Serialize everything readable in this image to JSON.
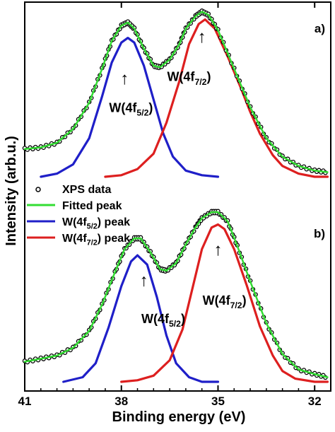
{
  "chart_data": {
    "type": "line",
    "xlabel": "Binding energy (eV)",
    "ylabel": "Intensity (arb.u.)",
    "xlim": [
      41.0,
      31.5
    ],
    "x_reversed": true,
    "x_ticks": [
      "41",
      "38",
      "35",
      "32"
    ],
    "grid": false,
    "legend": {
      "placement": "middle-left",
      "entries": [
        {
          "text": "XPS data",
          "marker": "open-circle",
          "color": "#000000"
        },
        {
          "text": "Fitted peak",
          "color": "#33dd33"
        },
        {
          "text_main": "W(4f",
          "text_sub": "5/2",
          "text_tail": ") peak",
          "color": "#1f1fc8"
        },
        {
          "text_main": "W(4f",
          "text_sub": "7/2",
          "text_tail": ") peak",
          "color": "#dd1f1f"
        }
      ]
    },
    "panels": [
      {
        "label": "a)",
        "ylim": [
          0,
          1.1
        ],
        "series": [
          {
            "name": "XPS data",
            "style": "scatter",
            "color": "#000000",
            "x": [
              41.0,
              40.5,
              40.0,
              39.5,
              39.0,
              38.6,
              38.3,
              38.0,
              37.8,
              37.6,
              37.3,
              37.0,
              36.8,
              36.5,
              36.2,
              36.0,
              35.7,
              35.5,
              35.3,
              35.0,
              34.5,
              34.0,
              33.5,
              33.0,
              32.5,
              32.0,
              31.6
            ],
            "y": [
              0.18,
              0.19,
              0.22,
              0.31,
              0.48,
              0.7,
              0.88,
              0.98,
              1.0,
              0.96,
              0.83,
              0.72,
              0.71,
              0.76,
              0.86,
              0.96,
              1.04,
              1.07,
              1.05,
              0.95,
              0.7,
              0.45,
              0.25,
              0.13,
              0.07,
              0.04,
              0.03
            ]
          },
          {
            "name": "Fitted peak",
            "style": "line",
            "color": "#33dd33",
            "x": [
              41.0,
              40.5,
              40.0,
              39.5,
              39.0,
              38.6,
              38.3,
              38.0,
              37.8,
              37.6,
              37.3,
              37.0,
              36.8,
              36.5,
              36.2,
              36.0,
              35.7,
              35.5,
              35.3,
              35.0,
              34.5,
              34.0,
              33.5,
              33.0,
              32.5,
              32.0,
              31.6
            ],
            "y": [
              0.18,
              0.19,
              0.22,
              0.31,
              0.48,
              0.7,
              0.88,
              0.98,
              1.0,
              0.96,
              0.83,
              0.72,
              0.71,
              0.76,
              0.86,
              0.96,
              1.04,
              1.07,
              1.05,
              0.95,
              0.7,
              0.45,
              0.25,
              0.13,
              0.07,
              0.04,
              0.03
            ]
          },
          {
            "name": "W(4f5/2) peak",
            "style": "line",
            "color": "#1f1fc8",
            "x": [
              40.5,
              40.0,
              39.5,
              39.0,
              38.6,
              38.3,
              38.0,
              37.8,
              37.6,
              37.3,
              37.0,
              36.7,
              36.4,
              36.0,
              35.5,
              35.0
            ],
            "y": [
              0.0,
              0.02,
              0.08,
              0.25,
              0.52,
              0.74,
              0.87,
              0.9,
              0.87,
              0.72,
              0.5,
              0.28,
              0.13,
              0.04,
              0.01,
              0.0
            ]
          },
          {
            "name": "W(4f7/2) peak",
            "style": "line",
            "color": "#dd1f1f",
            "x": [
              38.5,
              38.0,
              37.5,
              37.0,
              36.6,
              36.2,
              35.9,
              35.6,
              35.4,
              35.1,
              34.7,
              34.3,
              34.0,
              33.7,
              33.3,
              33.0,
              32.5,
              32.0,
              31.6
            ],
            "y": [
              0.0,
              0.01,
              0.05,
              0.15,
              0.35,
              0.62,
              0.86,
              0.99,
              1.02,
              0.96,
              0.78,
              0.58,
              0.42,
              0.28,
              0.14,
              0.07,
              0.02,
              0.0,
              0.0
            ]
          }
        ],
        "annotations": [
          {
            "text_main": "W(4f",
            "text_sub": "5/2",
            "text_tail": ")",
            "x": 37.7,
            "y": 0.42
          },
          {
            "text_main": "W(4f",
            "text_sub": "7/2",
            "text_tail": ")",
            "x": 35.9,
            "y": 0.62
          },
          {
            "text": "↑",
            "x": 37.9,
            "y": 0.6
          },
          {
            "text": "↑",
            "x": 35.5,
            "y": 0.87
          }
        ]
      },
      {
        "label": "b)",
        "ylim": [
          0,
          1.1
        ],
        "series": [
          {
            "name": "XPS data",
            "style": "scatter",
            "color": "#000000",
            "x": [
              41.0,
              40.5,
              40.0,
              39.5,
              39.0,
              38.6,
              38.2,
              37.9,
              37.6,
              37.4,
              37.1,
              36.8,
              36.6,
              36.3,
              36.0,
              35.7,
              35.5,
              35.2,
              35.0,
              34.7,
              34.4,
              34.0,
              33.5,
              33.0,
              32.5,
              32.0,
              31.6
            ],
            "y": [
              0.13,
              0.15,
              0.17,
              0.22,
              0.33,
              0.5,
              0.71,
              0.86,
              0.93,
              0.93,
              0.84,
              0.73,
              0.72,
              0.77,
              0.89,
              1.0,
              1.06,
              1.1,
              1.1,
              1.04,
              0.88,
              0.65,
              0.38,
              0.18,
              0.08,
              0.05,
              0.03
            ]
          },
          {
            "name": "Fitted peak",
            "style": "line",
            "color": "#33dd33",
            "x": [
              41.0,
              40.5,
              40.0,
              39.5,
              39.0,
              38.6,
              38.2,
              37.9,
              37.6,
              37.4,
              37.1,
              36.8,
              36.6,
              36.3,
              36.0,
              35.7,
              35.5,
              35.2,
              35.0,
              34.7,
              34.4,
              34.0,
              33.5,
              33.0,
              32.5,
              32.0,
              31.6
            ],
            "y": [
              0.13,
              0.15,
              0.17,
              0.22,
              0.33,
              0.5,
              0.71,
              0.86,
              0.93,
              0.93,
              0.84,
              0.73,
              0.72,
              0.77,
              0.89,
              1.0,
              1.06,
              1.1,
              1.1,
              1.04,
              0.88,
              0.65,
              0.38,
              0.18,
              0.08,
              0.05,
              0.03
            ]
          },
          {
            "name": "W(4f5/2) peak",
            "style": "line",
            "color": "#1f1fc8",
            "x": [
              39.8,
              39.2,
              38.8,
              38.4,
              38.0,
              37.7,
              37.5,
              37.2,
              36.9,
              36.6,
              36.3,
              35.9,
              35.5,
              35.0
            ],
            "y": [
              0.0,
              0.03,
              0.12,
              0.35,
              0.62,
              0.78,
              0.82,
              0.76,
              0.55,
              0.3,
              0.12,
              0.03,
              0.0,
              0.0
            ]
          },
          {
            "name": "W(4f7/2) peak",
            "style": "line",
            "color": "#dd1f1f",
            "x": [
              38.0,
              37.5,
              37.0,
              36.5,
              36.1,
              35.8,
              35.5,
              35.2,
              35.0,
              34.8,
              34.5,
              34.1,
              33.7,
              33.3,
              33.0,
              32.6,
              32.0,
              31.6
            ],
            "y": [
              0.0,
              0.01,
              0.04,
              0.14,
              0.34,
              0.6,
              0.86,
              1.0,
              1.02,
              0.99,
              0.86,
              0.62,
              0.36,
              0.17,
              0.07,
              0.02,
              0.0,
              0.0
            ]
          }
        ],
        "annotations": [
          {
            "text_main": "W(4f",
            "text_sub": "5/2",
            "text_tail": ")",
            "x": 36.7,
            "y": 0.38
          },
          {
            "text_main": "W(4f",
            "text_sub": "7/2",
            "text_tail": ")",
            "x": 34.8,
            "y": 0.5
          },
          {
            "text": "↑",
            "x": 37.3,
            "y": 0.62
          },
          {
            "text": "↑",
            "x": 35.0,
            "y": 0.82
          }
        ]
      }
    ]
  }
}
